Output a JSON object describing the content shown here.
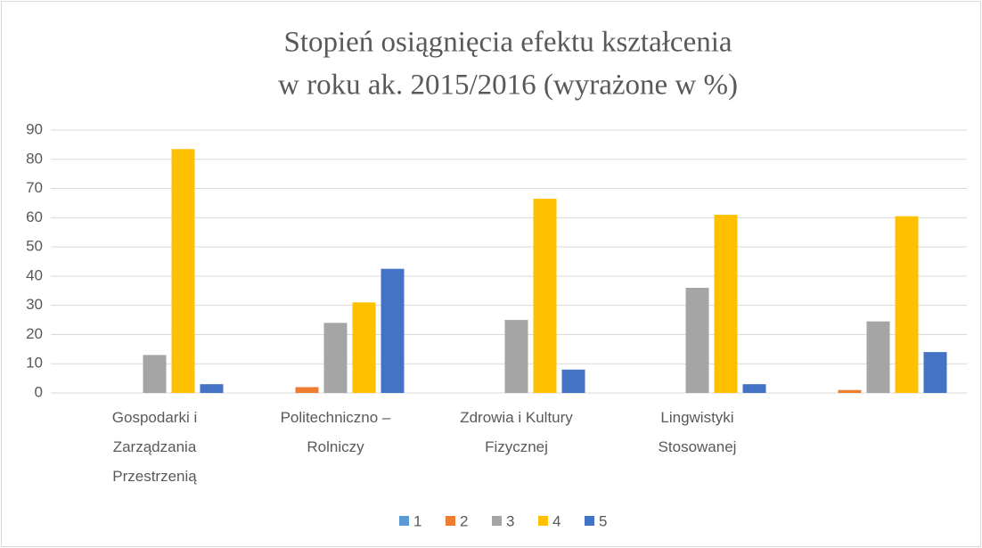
{
  "chart_data": {
    "type": "bar",
    "title": [
      "Stopień osiągnięcia efektu kształcenia",
      "w roku ak. 2015/2016 (wyrażone w %)"
    ],
    "categories": [
      "Gospodarki i Zarządzania Przestrzenią",
      "Politechniczno – Rolniczy",
      "Zdrowia i Kultury Fizycznej",
      "Lingwistyki Stosowanej",
      null
    ],
    "series": [
      {
        "name": "1",
        "color": "#5b9bd5",
        "values": [
          0,
          0,
          0,
          0,
          0
        ]
      },
      {
        "name": "2",
        "color": "#ed7d31",
        "values": [
          0,
          2,
          0,
          0,
          1
        ]
      },
      {
        "name": "3",
        "color": "#a5a5a5",
        "values": [
          13,
          24,
          25,
          36,
          24.5
        ]
      },
      {
        "name": "4",
        "color": "#ffc000",
        "values": [
          83.5,
          31,
          66.5,
          61,
          60.5
        ]
      },
      {
        "name": "5",
        "color": "#4472c4",
        "values": [
          3,
          42.5,
          8,
          3,
          14
        ]
      }
    ],
    "ylim": [
      0,
      90
    ],
    "yticks": [
      0,
      10,
      20,
      30,
      40,
      50,
      60,
      70,
      80,
      90
    ],
    "grid": true,
    "legend": "bottom"
  }
}
